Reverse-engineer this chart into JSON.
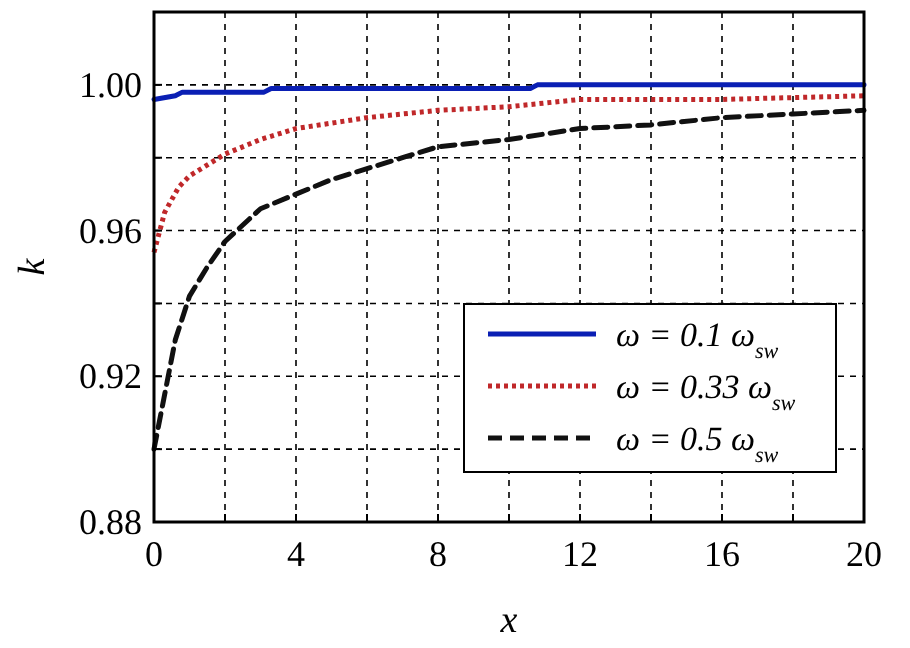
{
  "chart_data": {
    "type": "line",
    "xlabel": "x",
    "ylabel": "k",
    "xlim": [
      0,
      20
    ],
    "ylim": [
      0.88,
      1.02
    ],
    "xticks": [
      0,
      {
        "value": 2,
        "label": null
      },
      4,
      {
        "value": 6,
        "label": null
      },
      8,
      {
        "value": 10,
        "label": null
      },
      12,
      {
        "value": 14,
        "label": null
      },
      16,
      {
        "value": 18,
        "label": null
      },
      20
    ],
    "yticks": [
      {
        "value": 0.88,
        "label": "0.88"
      },
      {
        "value": 0.9,
        "label": null
      },
      {
        "value": 0.92,
        "label": "0.92"
      },
      {
        "value": 0.94,
        "label": null
      },
      {
        "value": 0.96,
        "label": "0.96"
      },
      {
        "value": 0.98,
        "label": null
      },
      {
        "value": 1.0,
        "label": "1.00"
      }
    ],
    "grid": true,
    "legend": "bottom right",
    "series": [
      {
        "name": "ω = 0.1 ω$_{sw}$",
        "color": "#0a1fb4",
        "line_style": "solid",
        "x": [
          0,
          0.6,
          0.8,
          3.1,
          3.3,
          10.6,
          10.8,
          20
        ],
        "values": [
          0.996,
          0.997,
          0.998,
          0.998,
          0.999,
          0.999,
          1.0,
          1.0
        ]
      },
      {
        "name": "ω = 0.33 ω$_{sw}$",
        "color": "#c0282a",
        "line_style": "dotted",
        "x": [
          0,
          0.3,
          0.7,
          1,
          2,
          3,
          4,
          6,
          8,
          10,
          12,
          16,
          20
        ],
        "values": [
          0.954,
          0.965,
          0.972,
          0.975,
          0.981,
          0.985,
          0.988,
          0.991,
          0.993,
          0.994,
          0.996,
          0.996,
          0.997
        ]
      },
      {
        "name": "ω = 0.5 ω$_{sw}$",
        "color": "#111111",
        "line_style": "dashed",
        "x": [
          0,
          0.3,
          0.6,
          1,
          1.5,
          2,
          3,
          4,
          5,
          6,
          7,
          8,
          10,
          12,
          14,
          16,
          18,
          20
        ],
        "values": [
          0.9,
          0.915,
          0.93,
          0.942,
          0.95,
          0.957,
          0.966,
          0.97,
          0.974,
          0.977,
          0.98,
          0.983,
          0.985,
          0.988,
          0.989,
          0.991,
          0.992,
          0.993
        ]
      }
    ]
  }
}
